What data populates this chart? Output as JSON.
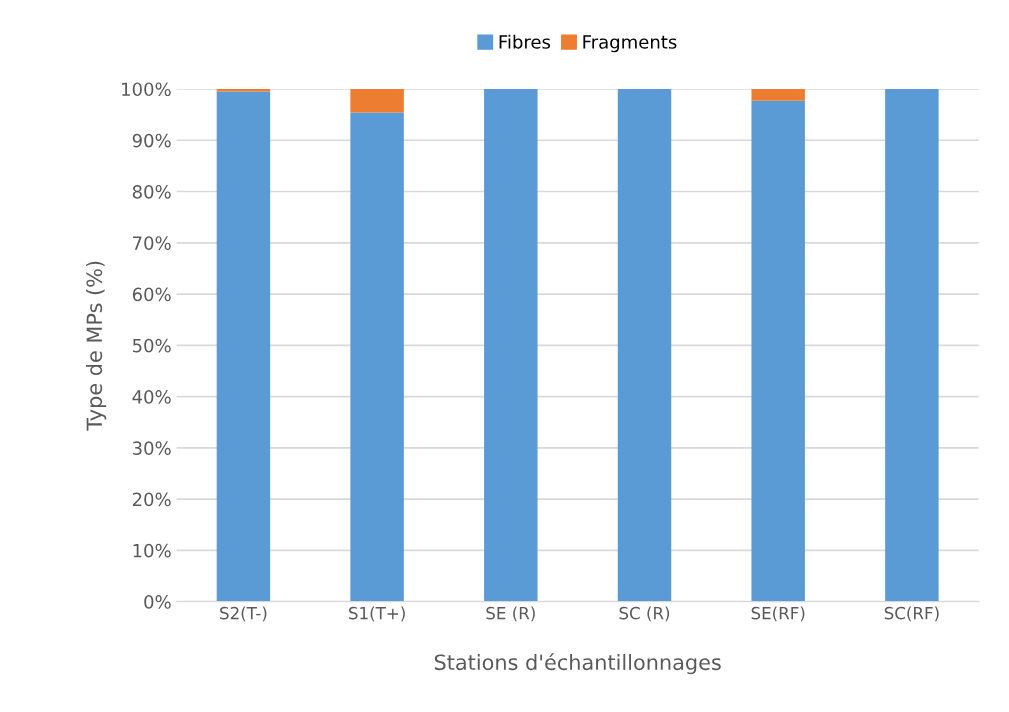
{
  "chart_data": {
    "type": "bar",
    "stacked": true,
    "xlabel": "Stations d'échantillonnages",
    "ylabel": "Type de MPs (%)",
    "categories": [
      "S2(T-)",
      "S1(T+)",
      "SE (R)",
      "SC (R)",
      "SE(RF)",
      "SC(RF)"
    ],
    "series": [
      {
        "name": "Fibres",
        "color": "#5b9bd5",
        "values": [
          99.5,
          95.4,
          100,
          100,
          97.7,
          100
        ]
      },
      {
        "name": "Fragments",
        "color": "#ed7d31",
        "values": [
          0.5,
          4.6,
          0,
          0,
          2.3,
          0
        ]
      }
    ],
    "ylim": [
      0,
      100
    ],
    "yticks": [
      {
        "value": 0,
        "label": "0%"
      },
      {
        "value": 10,
        "label": "10%"
      },
      {
        "value": 20,
        "label": "20%"
      },
      {
        "value": 30,
        "label": "30%"
      },
      {
        "value": 40,
        "label": "40%"
      },
      {
        "value": 50,
        "label": "50%"
      },
      {
        "value": 60,
        "label": "60%"
      },
      {
        "value": 70,
        "label": "70%"
      },
      {
        "value": 80,
        "label": "80%"
      },
      {
        "value": 90,
        "label": "90%"
      },
      {
        "value": 100,
        "label": "100%"
      }
    ],
    "grid": "y",
    "legend": "top"
  }
}
